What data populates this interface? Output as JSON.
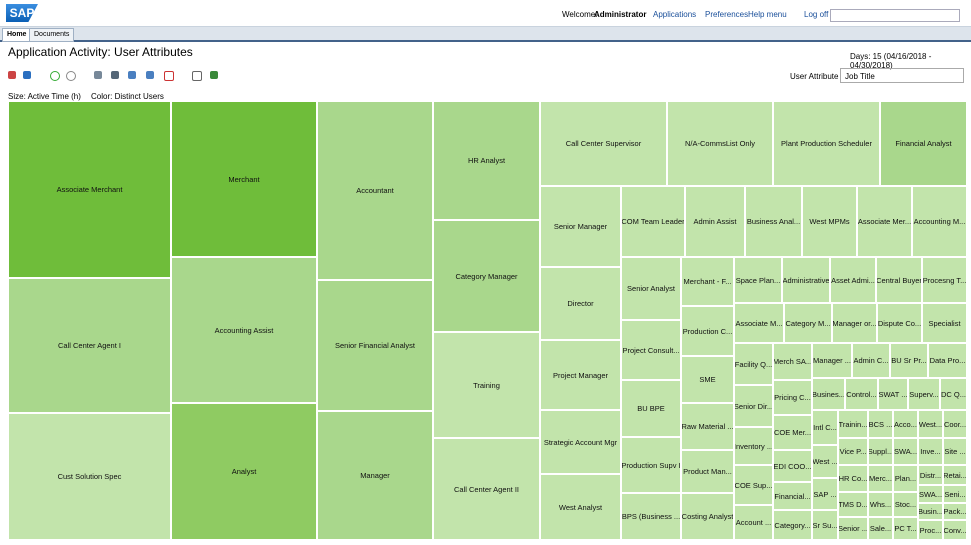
{
  "header": {
    "logo": "SAP",
    "welcome": "Welcome:",
    "user": "Administrator",
    "menu": [
      "Applications",
      "Preferences",
      "Help menu",
      "Log off"
    ]
  },
  "tabs": [
    "Home",
    "Documents"
  ],
  "title": "Application Activity: User Attributes",
  "days": "Days: 15 (04/16/2018 - 04/30/2018)",
  "attribute": {
    "label": "User Attribute",
    "selected": "Job Title"
  },
  "legend": {
    "size": "Size: Active Time (h)",
    "color": "Color: Distinct Users"
  },
  "treemap": {
    "cells": [
      "Associate Merchant",
      "Call Center Agent I",
      "Cust Solution Spec",
      "Merchant",
      "Accounting Assist",
      "Analyst",
      "Accountant",
      "Senior Financial Analyst",
      "Manager",
      "HR Analyst",
      "Category Manager",
      "Training",
      "Call Center Agent II",
      "Call Center Supervisor",
      "N/A-CommsList Only",
      "Plant Production Scheduler",
      "Financial Analyst",
      "Senior Manager",
      "Director",
      "Project Manager",
      "Strategic Account Mgr",
      "West Analyst",
      "COM Team Leader",
      "Admin Assist",
      "Business Anal...",
      "West MPMs",
      "Associate Mer...",
      "Accounting M...",
      "Senior Analyst",
      "Project Consult...",
      "BU BPE",
      "Production Supv I",
      "BPS (Business ...",
      "Merchant - F...",
      "Production C...",
      "SME",
      "Raw Material ...",
      "Product Man...",
      "Costing Analyst",
      "Space Plan...",
      "Administrative",
      "Asset Admi...",
      "Central Buyer",
      "Procesng T...",
      "Associate M...",
      "Category M...",
      "Manager or...",
      "Dispute Co...",
      "Specialist",
      "Facility Q...",
      "Senior Dir...",
      "Inventory ...",
      "COE Sup...",
      "Account ...",
      "Merch SA...",
      "Pricing C...",
      "COE Mer...",
      "EDI COO...",
      "Financial...",
      "Category...",
      "Manager ...",
      "Admin C...",
      "BU Sr Pr...",
      "Data Pro...",
      "Busines...",
      "Control...",
      "SWAT ...",
      "Superv...",
      "DC Q...",
      "Intl C...",
      "West ...",
      "SAP ...",
      "Sr Su...",
      "Trainin...",
      "Vice P...",
      "HR Co...",
      "TMS D...",
      "Senior ...",
      "BCS ...",
      "Suppl...",
      "Merc...",
      "Whs...",
      "Sale...",
      "Acco...",
      "SWA...",
      "Plan...",
      "Stoc...",
      "PC T...",
      "West...",
      "Inve...",
      "Distr...",
      "SWA...",
      "Busin...",
      "Proc...",
      "Coor...",
      "Site ...",
      "Retai...",
      "Seni...",
      "Pack...",
      "Conv..."
    ]
  }
}
